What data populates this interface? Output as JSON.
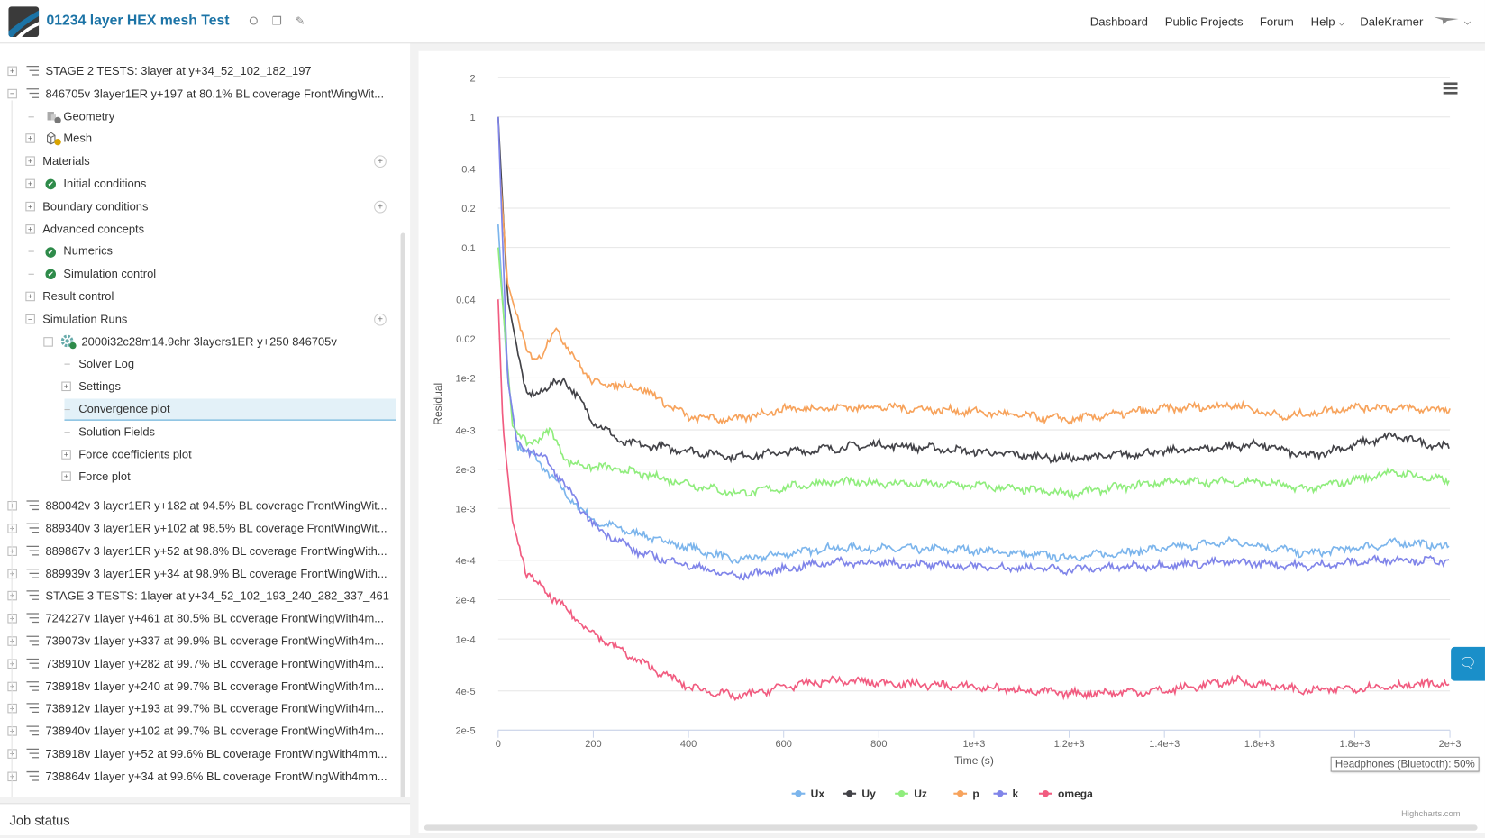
{
  "header": {
    "title": "01234 layer HEX mesh Test",
    "nav": [
      "Dashboard",
      "Public Projects",
      "Forum",
      "Help",
      "DaleKramer"
    ]
  },
  "tree": [
    {
      "lvl": 0,
      "exp": "plus",
      "icon": "list",
      "label": "STAGE 2 TESTS: 3layer at y+34_52_102_182_197"
    },
    {
      "lvl": 0,
      "exp": "minus",
      "icon": "list",
      "label": "846705v 3layer1ER y+197 at 80.1% BL coverage FrontWingWit..."
    },
    {
      "lvl": 1,
      "exp": "line",
      "icon": "geometry",
      "label": "Geometry"
    },
    {
      "lvl": 1,
      "exp": "plus",
      "icon": "mesh",
      "label": "Mesh"
    },
    {
      "lvl": 1,
      "exp": "plus",
      "icon": "none",
      "label": "Materials",
      "add": true
    },
    {
      "lvl": 1,
      "exp": "plus",
      "icon": "check",
      "label": "Initial conditions"
    },
    {
      "lvl": 1,
      "exp": "plus",
      "icon": "none",
      "label": "Boundary conditions",
      "add": true
    },
    {
      "lvl": 1,
      "exp": "plus",
      "icon": "none",
      "label": "Advanced concepts"
    },
    {
      "lvl": 1,
      "exp": "line",
      "icon": "check",
      "label": "Numerics"
    },
    {
      "lvl": 1,
      "exp": "line",
      "icon": "check",
      "label": "Simulation control"
    },
    {
      "lvl": 1,
      "exp": "plus",
      "icon": "none",
      "label": "Result control"
    },
    {
      "lvl": 1,
      "exp": "minus",
      "icon": "none",
      "label": "Simulation Runs",
      "add": true
    },
    {
      "lvl": 2,
      "exp": "minus",
      "icon": "gear",
      "label": "2000i32c28m14.9chr 3layers1ER y+250 846705v"
    },
    {
      "lvl": 3,
      "exp": "line",
      "icon": "none",
      "label": "Solver Log"
    },
    {
      "lvl": 3,
      "exp": "plus",
      "icon": "none",
      "label": "Settings"
    },
    {
      "lvl": 3,
      "exp": "line",
      "icon": "none",
      "label": "Convergence plot",
      "selected": true
    },
    {
      "lvl": 3,
      "exp": "line",
      "icon": "none",
      "label": "Solution Fields"
    },
    {
      "lvl": 3,
      "exp": "plus",
      "icon": "none",
      "label": "Force coefficients plot"
    },
    {
      "lvl": 3,
      "exp": "plus",
      "icon": "none",
      "label": "Force plot"
    },
    {
      "lvl": 0,
      "exp": "plus",
      "icon": "list",
      "label": "880042v 3 layer1ER y+182 at 94.5% BL coverage FrontWingWit..."
    },
    {
      "lvl": 0,
      "exp": "plus",
      "icon": "list",
      "label": "889340v 3 layer1ER y+102 at 98.5% BL coverage FrontWingWit..."
    },
    {
      "lvl": 0,
      "exp": "plus",
      "icon": "list",
      "label": "889867v 3 layer1ER y+52 at 98.8% BL coverage FrontWingWith..."
    },
    {
      "lvl": 0,
      "exp": "plus",
      "icon": "list",
      "label": "889939v 3 layer1ER y+34 at 98.9% BL coverage FrontWingWith..."
    },
    {
      "lvl": 0,
      "exp": "plus",
      "icon": "list",
      "label": "STAGE 3 TESTS: 1layer at y+34_52_102_193_240_282_337_461"
    },
    {
      "lvl": 0,
      "exp": "plus",
      "icon": "list",
      "label": "724227v 1layer y+461 at 80.5% BL coverage FrontWingWith4m..."
    },
    {
      "lvl": 0,
      "exp": "plus",
      "icon": "list",
      "label": "739073v 1layer y+337 at 99.9% BL coverage FrontWingWith4m..."
    },
    {
      "lvl": 0,
      "exp": "plus",
      "icon": "list",
      "label": "738910v 1layer y+282 at 99.7% BL coverage FrontWingWith4m..."
    },
    {
      "lvl": 0,
      "exp": "plus",
      "icon": "list",
      "label": "738918v 1layer y+240 at 99.7% BL coverage FrontWingWith4m..."
    },
    {
      "lvl": 0,
      "exp": "plus",
      "icon": "list",
      "label": "738912v 1layer y+193 at 99.7% BL coverage FrontWingWith4m..."
    },
    {
      "lvl": 0,
      "exp": "plus",
      "icon": "list",
      "label": "738940v 1layer y+102 at 99.7% BL coverage FrontWingWith4m..."
    },
    {
      "lvl": 0,
      "exp": "plus",
      "icon": "list",
      "label": "738918v 1layer y+52 at 99.6% BL coverage FrontWingWith4mm..."
    },
    {
      "lvl": 0,
      "exp": "plus",
      "icon": "list",
      "label": "738864v 1layer y+34 at 99.6% BL coverage FrontWingWith4mm..."
    }
  ],
  "job_status": "Job status",
  "tooltip": "Headphones (Bluetooth): 50%",
  "credits": "Highcharts.com",
  "chart_data": {
    "type": "line",
    "xlabel": "Time (s)",
    "ylabel": "Residual",
    "xlim": [
      0,
      2000
    ],
    "ylim": [
      2e-05,
      2
    ],
    "yscale": "log",
    "xticks": [
      0,
      200,
      400,
      600,
      800,
      1000,
      1200,
      1400,
      1600,
      1800,
      2000
    ],
    "xtick_labels": [
      "0",
      "200",
      "400",
      "600",
      "800",
      "1e+3",
      "1.2e+3",
      "1.4e+3",
      "1.6e+3",
      "1.8e+3",
      "2e+3"
    ],
    "yticks": [
      2,
      1,
      0.4,
      0.2,
      0.1,
      0.04,
      0.02,
      0.01,
      0.004,
      0.002,
      0.001,
      0.0004,
      0.0002,
      0.0001,
      4e-05,
      2e-05
    ],
    "ytick_labels": [
      "2",
      "1",
      "0.4",
      "0.2",
      "0.1",
      "0.04",
      "0.02",
      "1e-2",
      "4e-3",
      "2e-3",
      "1e-3",
      "4e-4",
      "2e-4",
      "1e-4",
      "4e-5",
      "2e-5"
    ],
    "legend_position": "bottom",
    "series": [
      {
        "name": "Ux",
        "color": "#7cb5ec",
        "points": [
          [
            0,
            0.15
          ],
          [
            20,
            0.0098
          ],
          [
            40,
            0.0031
          ],
          [
            80,
            0.0024
          ],
          [
            150,
            0.0012
          ],
          [
            200,
            0.0008
          ],
          [
            300,
            0.00063
          ],
          [
            500,
            0.0004
          ],
          [
            700,
            0.0005
          ],
          [
            1000,
            0.00048
          ],
          [
            1200,
            0.00042
          ],
          [
            1550,
            0.00056
          ],
          [
            1700,
            0.00045
          ],
          [
            1900,
            0.00055
          ],
          [
            2000,
            0.00051
          ]
        ]
      },
      {
        "name": "Uy",
        "color": "#434348",
        "points": [
          [
            0,
            1
          ],
          [
            10,
            0.2
          ],
          [
            20,
            0.04
          ],
          [
            60,
            0.0071
          ],
          [
            140,
            0.0098
          ],
          [
            200,
            0.0047
          ],
          [
            260,
            0.0032
          ],
          [
            500,
            0.0025
          ],
          [
            800,
            0.0031
          ],
          [
            1200,
            0.0024
          ],
          [
            1600,
            0.0031
          ],
          [
            1700,
            0.0025
          ],
          [
            1880,
            0.0036
          ],
          [
            2000,
            0.0029
          ]
        ]
      },
      {
        "name": "Uz",
        "color": "#90ed7d",
        "points": [
          [
            0,
            0.1
          ],
          [
            30,
            0.0043
          ],
          [
            60,
            0.0031
          ],
          [
            110,
            0.0039
          ],
          [
            150,
            0.0022
          ],
          [
            250,
            0.002
          ],
          [
            500,
            0.0013
          ],
          [
            700,
            0.0016
          ],
          [
            1000,
            0.0015
          ],
          [
            1200,
            0.0013
          ],
          [
            1400,
            0.0016
          ],
          [
            1600,
            0.0016
          ],
          [
            1700,
            0.0014
          ],
          [
            1880,
            0.0019
          ],
          [
            2000,
            0.0016
          ]
        ]
      },
      {
        "name": "p",
        "color": "#f7a35c",
        "points": [
          [
            5,
            0.33
          ],
          [
            20,
            0.053
          ],
          [
            60,
            0.016
          ],
          [
            90,
            0.014
          ],
          [
            120,
            0.025
          ],
          [
            150,
            0.016
          ],
          [
            200,
            0.0092
          ],
          [
            300,
            0.0084
          ],
          [
            400,
            0.005
          ],
          [
            500,
            0.0048
          ],
          [
            600,
            0.0058
          ],
          [
            800,
            0.006
          ],
          [
            1000,
            0.0055
          ],
          [
            1200,
            0.0048
          ],
          [
            1400,
            0.0058
          ],
          [
            1550,
            0.0062
          ],
          [
            1650,
            0.005
          ],
          [
            1800,
            0.006
          ],
          [
            2000,
            0.0057
          ]
        ]
      },
      {
        "name": "k",
        "color": "#8085e9",
        "points": [
          [
            0,
            1
          ],
          [
            20,
            0.0098
          ],
          [
            40,
            0.0031
          ],
          [
            100,
            0.0024
          ],
          [
            200,
            0.00074
          ],
          [
            300,
            0.00045
          ],
          [
            500,
            0.0003
          ],
          [
            700,
            0.00039
          ],
          [
            1000,
            0.00036
          ],
          [
            1200,
            0.00034
          ],
          [
            1550,
            0.00039
          ],
          [
            1700,
            0.00036
          ],
          [
            1880,
            0.00041
          ],
          [
            2000,
            0.00039
          ]
        ]
      },
      {
        "name": "omega",
        "color": "#f15c80",
        "points": [
          [
            0,
            0.04
          ],
          [
            10,
            0.0043
          ],
          [
            30,
            0.0008
          ],
          [
            60,
            0.00032
          ],
          [
            100,
            0.00023
          ],
          [
            200,
            0.00011
          ],
          [
            300,
            6.6e-05
          ],
          [
            400,
            4.3e-05
          ],
          [
            500,
            3.6e-05
          ],
          [
            600,
            4.3e-05
          ],
          [
            700,
            4.8e-05
          ],
          [
            1000,
            4.3e-05
          ],
          [
            1200,
            3.8e-05
          ],
          [
            1400,
            4e-05
          ],
          [
            1550,
            4.8e-05
          ],
          [
            1700,
            4e-05
          ],
          [
            1850,
            4.3e-05
          ],
          [
            2000,
            4.6e-05
          ]
        ]
      }
    ]
  }
}
